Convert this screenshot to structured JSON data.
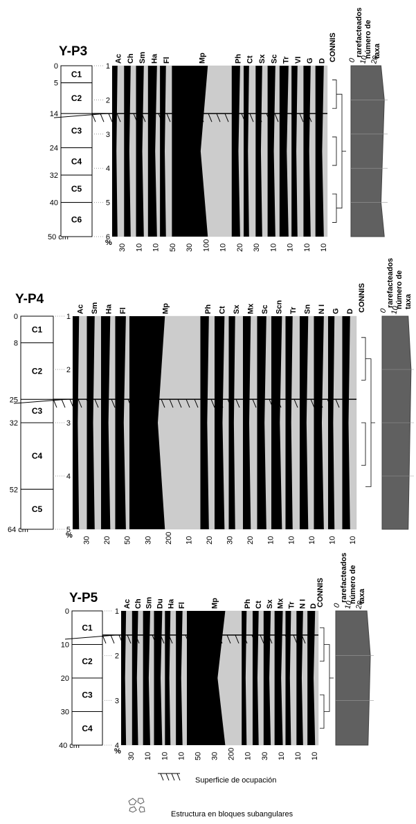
{
  "panels": [
    {
      "title": "Y-P3",
      "depths": [
        0,
        5,
        14,
        24,
        32,
        40,
        {
          "value": 50,
          "label": "50 cm"
        }
      ],
      "strata": [
        "C1",
        "C2",
        "C3",
        "C4",
        "C5",
        "C6"
      ],
      "samples": [
        "1",
        "2",
        "3",
        "4",
        "5",
        "6"
      ],
      "taxa": [
        "Ac",
        "Ch",
        "Sm",
        "Ha",
        "Fl",
        "Mp",
        "Ph",
        "Ct",
        "Sx",
        "Sc",
        "Tr",
        "VI",
        "G",
        "D"
      ],
      "scale": [
        "%",
        "30",
        "10",
        "10",
        "50",
        "30",
        "100",
        "10",
        "20",
        "30",
        "10",
        "10",
        "10",
        "10"
      ],
      "connis": "CONNIS",
      "rarefaction": {
        "zero": "0",
        "line1": "rarefacteados",
        "line2": "número de",
        "line3": "taxa",
        "ticks": [
          "10",
          "20"
        ]
      }
    },
    {
      "title": "Y-P4",
      "depths": [
        0,
        8,
        25,
        32,
        52,
        {
          "value": 64,
          "label": "64 cm"
        }
      ],
      "strata": [
        "C1",
        "C2",
        "C3",
        "C4",
        "C5"
      ],
      "samples": [
        "1",
        "2",
        "3",
        "4",
        "5"
      ],
      "taxa": [
        "Ac",
        "Sm",
        "Ha",
        "Fl",
        "Mp",
        "Ph",
        "Ct",
        "Sx",
        "Mx",
        "Sc",
        "Scn",
        "Tr",
        "Sn",
        "N I",
        "G",
        "D"
      ],
      "scale": [
        "%",
        "30",
        "20",
        "50",
        "30",
        "200",
        "10",
        "20",
        "30",
        "20",
        "10",
        "10",
        "10",
        "10",
        "10"
      ],
      "connis": "CONNIS",
      "rarefaction": {
        "zero": "0",
        "line1": "rarefacteados",
        "line2": "número de",
        "line3": "taxa",
        "ticks": [
          "10"
        ]
      }
    },
    {
      "title": "Y-P5",
      "depths": [
        0,
        10,
        20,
        30,
        {
          "value": 40,
          "label": "40 cm"
        }
      ],
      "strata": [
        "C1",
        "C2",
        "C3",
        "C4"
      ],
      "samples": [
        "1",
        "2",
        "3",
        "4"
      ],
      "taxa": [
        "Ac",
        "Ch",
        "Sm",
        "Du",
        "Ha",
        "Fl",
        "Mp",
        "Ph",
        "Ct",
        "Sx",
        "Mx",
        "Tr",
        "N I",
        "D"
      ],
      "scale": [
        "%",
        "30",
        "10",
        "10",
        "10",
        "50",
        "30",
        "200",
        "10",
        "30",
        "10",
        "10",
        "10"
      ],
      "connis": "CONNIS",
      "rarefaction": {
        "zero": "0",
        "line1": "rarefacteados",
        "line2": "número de",
        "line3": "taxa",
        "ticks": [
          "10",
          "20"
        ]
      }
    }
  ],
  "legend": {
    "surface": "Superficie de ocupación",
    "structure": "Estructura en bloques subangulares"
  }
}
